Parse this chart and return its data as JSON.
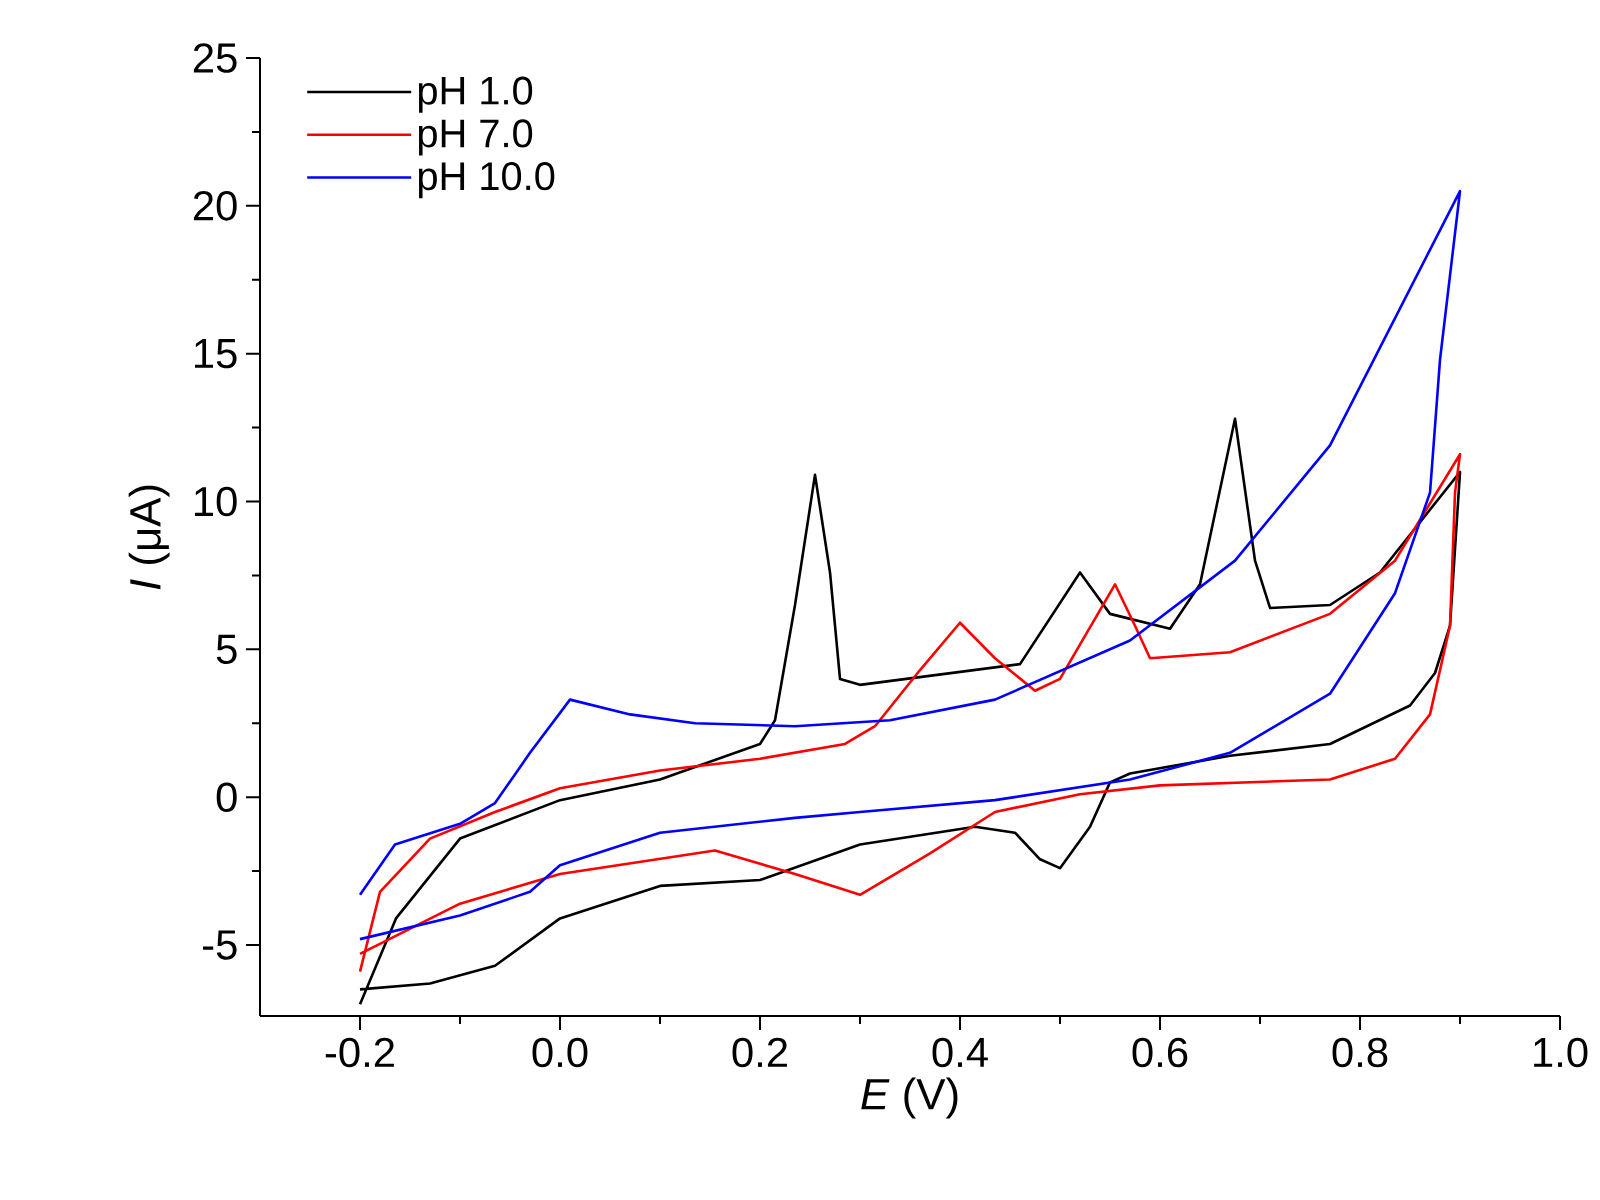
{
  "chart_data": {
    "type": "line",
    "xlabel": "*E* (V)",
    "ylabel": "*I* (μA)",
    "xlim": [
      -0.3,
      1.0
    ],
    "ylim": [
      -7.4,
      25
    ],
    "xticks": [
      -0.2,
      {
        "value": 0.0,
        "label": "0.0"
      },
      0.2,
      0.4,
      0.6,
      0.8,
      {
        "value": 1.0,
        "label": "1.0"
      }
    ],
    "yticks": [
      -5,
      0,
      5,
      10,
      15,
      20,
      25
    ],
    "legend": "top left",
    "series": [
      {
        "name": "pH 1.0",
        "color": "#000000",
        "x": [
          -0.2,
          -0.164,
          -0.1,
          0.0,
          0.1,
          0.2,
          0.215,
          0.235,
          0.255,
          0.27,
          0.28,
          0.3,
          0.46,
          0.52,
          0.55,
          0.61,
          0.64,
          0.675,
          0.695,
          0.71,
          0.77,
          0.82,
          0.9,
          0.89,
          0.875,
          0.85,
          0.77,
          0.67,
          0.57,
          0.55,
          0.53,
          0.5,
          0.48,
          0.455,
          0.415,
          0.3,
          0.2,
          0.1,
          0.0,
          -0.065,
          -0.13,
          -0.2
        ],
        "values": [
          -7.0,
          -4.1,
          -1.4,
          -0.1,
          0.6,
          1.8,
          2.6,
          6.5,
          10.9,
          7.6,
          4.0,
          3.8,
          4.5,
          7.6,
          6.2,
          5.7,
          7.2,
          12.8,
          8.0,
          6.4,
          6.5,
          7.6,
          11.0,
          5.8,
          4.2,
          3.1,
          1.8,
          1.4,
          0.8,
          0.5,
          -1.0,
          -2.4,
          -2.1,
          -1.2,
          -1.0,
          -1.6,
          -2.8,
          -3.0,
          -4.1,
          -5.7,
          -6.3,
          -6.5
        ]
      },
      {
        "name": "pH 7.0",
        "color": "#ff0000",
        "x": [
          -0.2,
          -0.18,
          -0.13,
          -0.065,
          0.0,
          0.1,
          0.2,
          0.285,
          0.315,
          0.36,
          0.4,
          0.435,
          0.475,
          0.5,
          0.555,
          0.575,
          0.59,
          0.67,
          0.77,
          0.835,
          0.9,
          0.895,
          0.89,
          0.87,
          0.835,
          0.77,
          0.6,
          0.52,
          0.435,
          0.37,
          0.3,
          0.235,
          0.155,
          0.0,
          -0.1,
          -0.2
        ],
        "values": [
          -5.9,
          -3.2,
          -1.4,
          -0.5,
          0.3,
          0.9,
          1.3,
          1.8,
          2.4,
          4.3,
          5.9,
          4.7,
          3.6,
          4.0,
          7.2,
          5.8,
          4.7,
          4.9,
          6.2,
          8.0,
          11.6,
          10.3,
          5.8,
          2.8,
          1.3,
          0.6,
          0.4,
          0.1,
          -0.5,
          -1.9,
          -3.3,
          -2.6,
          -1.8,
          -2.6,
          -3.6,
          -5.3
        ]
      },
      {
        "name": "pH 10.0",
        "color": "#0000ff",
        "x": [
          -0.2,
          -0.165,
          -0.1,
          -0.065,
          -0.03,
          0.01,
          0.07,
          0.135,
          0.235,
          0.33,
          0.435,
          0.57,
          0.675,
          0.77,
          0.9,
          0.88,
          0.87,
          0.835,
          0.77,
          0.67,
          0.57,
          0.435,
          0.3,
          0.235,
          0.1,
          0.0,
          -0.03,
          -0.1,
          -0.2
        ],
        "values": [
          -3.3,
          -1.6,
          -0.9,
          -0.2,
          1.5,
          3.3,
          2.8,
          2.5,
          2.4,
          2.6,
          3.3,
          5.3,
          8.0,
          11.9,
          20.5,
          14.8,
          10.3,
          6.9,
          3.5,
          1.5,
          0.6,
          -0.1,
          -0.5,
          -0.7,
          -1.2,
          -2.3,
          -3.2,
          -4.0,
          -4.8
        ]
      }
    ]
  }
}
